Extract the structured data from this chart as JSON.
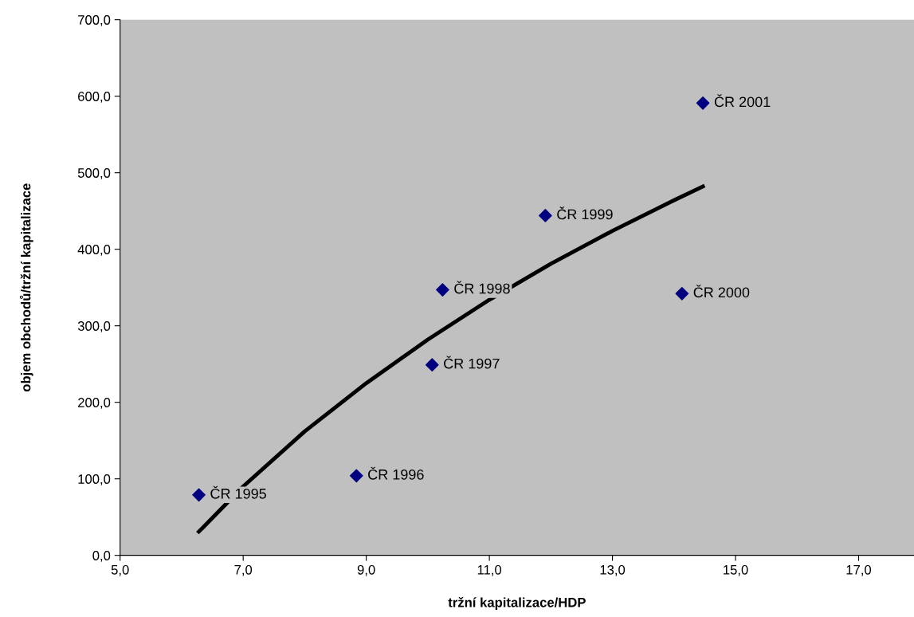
{
  "chart_data": {
    "type": "scatter",
    "xlabel": "tržní kapitalizace/HDP",
    "ylabel": "objem obchodů/tržní kapitalizace",
    "xlim": [
      5,
      17.9
    ],
    "ylim": [
      0,
      700
    ],
    "xticks": [
      {
        "value": 5,
        "label": "5,0"
      },
      {
        "value": 7,
        "label": "7,0"
      },
      {
        "value": 9,
        "label": "9,0"
      },
      {
        "value": 11,
        "label": "11,0"
      },
      {
        "value": 13,
        "label": "13,0"
      },
      {
        "value": 15,
        "label": "15,0"
      },
      {
        "value": 17,
        "label": "17,0"
      }
    ],
    "yticks": [
      {
        "value": 0,
        "label": "0,0"
      },
      {
        "value": 100,
        "label": "100,0"
      },
      {
        "value": 200,
        "label": "200,0"
      },
      {
        "value": 300,
        "label": "300,0"
      },
      {
        "value": 400,
        "label": "400,0"
      },
      {
        "value": 500,
        "label": "500,0"
      },
      {
        "value": 600,
        "label": "600,0"
      },
      {
        "value": 700,
        "label": "700,0"
      }
    ],
    "grid": false,
    "legend": false,
    "series": [
      {
        "marker": "diamond",
        "color": "#000080",
        "x": [
          6.28,
          8.84,
          10.07,
          10.24,
          11.91,
          14.13,
          14.47
        ],
        "values": [
          79,
          104,
          249,
          347,
          444,
          342,
          591
        ]
      },
      {
        "type": "line",
        "marker": "none",
        "line_style": "solid",
        "color": "#000000",
        "x": [
          6.28,
          7,
          8,
          9,
          10,
          11,
          12,
          13,
          14,
          14.47
        ],
        "values": [
          31,
          90,
          162,
          225,
          282,
          334,
          381,
          424,
          464,
          482
        ]
      }
    ],
    "annotations": [
      {
        "text": "ČR 1995",
        "x": 6.28,
        "y": 79
      },
      {
        "text": "ČR 1996",
        "x": 8.84,
        "y": 104
      },
      {
        "text": "ČR 1997",
        "x": 10.07,
        "y": 249
      },
      {
        "text": "ČR 1998",
        "x": 10.24,
        "y": 347
      },
      {
        "text": "ČR 1999",
        "x": 11.91,
        "y": 444
      },
      {
        "text": "ČR 2000",
        "x": 14.13,
        "y": 342
      },
      {
        "text": "ČR 2001",
        "x": 14.47,
        "y": 591
      }
    ]
  }
}
